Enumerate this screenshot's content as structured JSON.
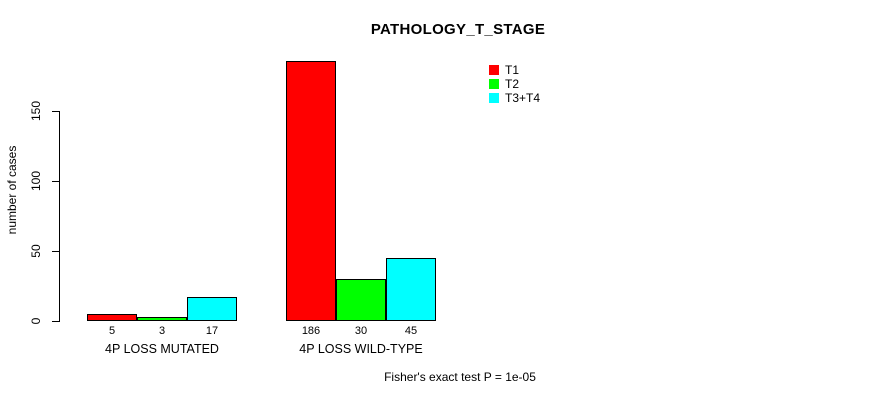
{
  "chart_data": {
    "type": "bar",
    "title": "PATHOLOGY_T_STAGE",
    "ylabel": "number of cases",
    "xlabel": "",
    "yticks": [
      0,
      50,
      100,
      150
    ],
    "ylim": [
      0,
      186
    ],
    "grid": false,
    "legend_position": "top-right",
    "categories": [
      "4P LOSS MUTATED",
      "4P LOSS WILD-TYPE"
    ],
    "series": [
      {
        "name": "T1",
        "color": "#ff0000",
        "values": [
          5,
          186
        ]
      },
      {
        "name": "T2",
        "color": "#00ff00",
        "values": [
          3,
          30
        ]
      },
      {
        "name": "T3+T4",
        "color": "#00ffff",
        "values": [
          17,
          45
        ]
      }
    ],
    "groups": [
      {
        "label": "4P LOSS MUTATED",
        "values": [
          5,
          3,
          17
        ]
      },
      {
        "label": "4P LOSS WILD-TYPE",
        "values": [
          186,
          30,
          45
        ]
      }
    ],
    "annotation": "Fisher's exact test P = 1e-05",
    "axis_color": "#000000",
    "background_color": "#ffffff"
  },
  "legend": {
    "items": [
      {
        "label": "T1"
      },
      {
        "label": "T2"
      },
      {
        "label": "T3+T4"
      }
    ]
  }
}
